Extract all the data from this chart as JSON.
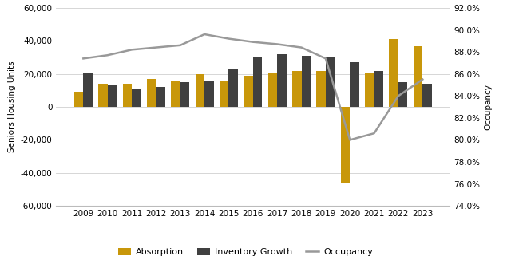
{
  "years": [
    2009,
    2010,
    2011,
    2012,
    2013,
    2014,
    2015,
    2016,
    2017,
    2018,
    2019,
    2020,
    2021,
    2022,
    2023
  ],
  "absorption": [
    9000,
    14000,
    14000,
    17000,
    16000,
    20000,
    16000,
    19000,
    21000,
    22000,
    22000,
    -46000,
    21000,
    41000,
    37000
  ],
  "inventory_growth": [
    21000,
    13000,
    11000,
    12000,
    15000,
    16000,
    23000,
    30000,
    32000,
    31000,
    30000,
    27000,
    22000,
    15000,
    14000
  ],
  "occupancy": [
    0.874,
    0.877,
    0.882,
    0.884,
    0.886,
    0.896,
    0.892,
    0.889,
    0.887,
    0.884,
    0.874,
    0.8,
    0.806,
    0.84,
    0.855
  ],
  "absorption_color": "#C8970A",
  "inventory_color": "#404040",
  "occupancy_color": "#999999",
  "ylabel_left": "Seniors Housing Units",
  "ylabel_right": "Occupancy",
  "ylim_left": [
    -60000,
    60000
  ],
  "ylim_right": [
    0.74,
    0.92
  ],
  "yticks_left": [
    -60000,
    -40000,
    -20000,
    0,
    20000,
    40000,
    60000
  ],
  "yticks_right": [
    0.74,
    0.76,
    0.78,
    0.8,
    0.82,
    0.84,
    0.86,
    0.88,
    0.9,
    0.92
  ],
  "background_color": "#FFFFFF",
  "grid_color": "#D0D0D0",
  "legend_labels": [
    "Absorption",
    "Inventory Growth",
    "Occupancy"
  ],
  "bar_width": 0.38,
  "figsize": [
    6.4,
    3.31
  ],
  "dpi": 100
}
